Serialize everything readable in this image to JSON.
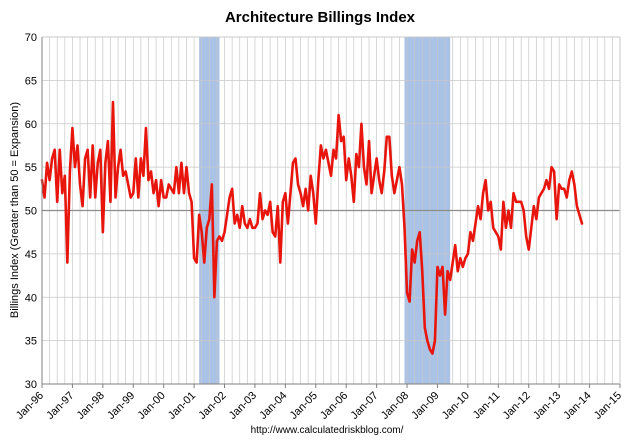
{
  "chart_data": {
    "type": "line",
    "title": "Architecture Billings Index",
    "xlabel": "",
    "ylabel": "Billings Index (Greater than 50 = Expansion)",
    "source": "http://www.calculatedriskblog.com/",
    "ylim": [
      30,
      70
    ],
    "yticks": [
      30,
      35,
      40,
      45,
      50,
      55,
      60,
      65,
      70
    ],
    "xlim": [
      "1996-01",
      "2015-01"
    ],
    "xtick_labels": [
      "Jan-96",
      "Jan-97",
      "Jan-98",
      "Jan-99",
      "Jan-00",
      "Jan-01",
      "Jan-02",
      "Jan-03",
      "Jan-04",
      "Jan-05",
      "Jan-06",
      "Jan-07",
      "Jan-08",
      "Jan-09",
      "Jan-10",
      "Jan-11",
      "Jan-12",
      "Jan-13",
      "Jan-14",
      "Jan-15"
    ],
    "reference_line": 50,
    "grid": true,
    "recessions": [
      {
        "start": "2001-03",
        "end": "2001-11"
      },
      {
        "start": "2007-12",
        "end": "2009-06"
      }
    ],
    "colors": {
      "line": "#e8150d",
      "recession": "#a9c2e6",
      "grid": "#c8c8c8",
      "refline": "#8c8c8c"
    },
    "series": [
      {
        "values": [
          [
            "1996-01",
            53.5
          ],
          [
            "1996-02",
            51.5
          ],
          [
            "1996-03",
            55.5
          ],
          [
            "1996-04",
            53.5
          ],
          [
            "1996-05",
            56.0
          ],
          [
            "1996-06",
            57.0
          ],
          [
            "1996-07",
            51.0
          ],
          [
            "1996-08",
            57.0
          ],
          [
            "1996-09",
            52.0
          ],
          [
            "1996-10",
            54.0
          ],
          [
            "1996-11",
            44.0
          ],
          [
            "1996-12",
            54.5
          ],
          [
            "1997-01",
            59.5
          ],
          [
            "1997-02",
            55.0
          ],
          [
            "1997-03",
            57.5
          ],
          [
            "1997-04",
            53.0
          ],
          [
            "1997-05",
            50.5
          ],
          [
            "1997-06",
            56.0
          ],
          [
            "1997-07",
            57.0
          ],
          [
            "1997-08",
            51.5
          ],
          [
            "1997-09",
            57.5
          ],
          [
            "1997-10",
            51.5
          ],
          [
            "1997-11",
            55.5
          ],
          [
            "1997-12",
            57.0
          ],
          [
            "1998-01",
            47.5
          ],
          [
            "1998-02",
            55.5
          ],
          [
            "1998-03",
            58.0
          ],
          [
            "1998-04",
            51.0
          ],
          [
            "1998-05",
            62.5
          ],
          [
            "1998-06",
            51.5
          ],
          [
            "1998-07",
            55.0
          ],
          [
            "1998-08",
            57.0
          ],
          [
            "1998-09",
            54.0
          ],
          [
            "1998-10",
            54.5
          ],
          [
            "1998-11",
            53.0
          ],
          [
            "1998-12",
            51.5
          ],
          [
            "1999-01",
            52.0
          ],
          [
            "1999-02",
            56.0
          ],
          [
            "1999-03",
            51.5
          ],
          [
            "1999-04",
            56.0
          ],
          [
            "1999-05",
            54.0
          ],
          [
            "1999-06",
            59.5
          ],
          [
            "1999-07",
            53.5
          ],
          [
            "1999-08",
            54.5
          ],
          [
            "1999-09",
            52.0
          ],
          [
            "1999-10",
            53.5
          ],
          [
            "1999-11",
            50.5
          ],
          [
            "1999-12",
            53.5
          ],
          [
            "2000-01",
            51.5
          ],
          [
            "2000-02",
            51.5
          ],
          [
            "2000-03",
            53.0
          ],
          [
            "2000-04",
            52.5
          ],
          [
            "2000-05",
            52.0
          ],
          [
            "2000-06",
            55.0
          ],
          [
            "2000-07",
            52.0
          ],
          [
            "2000-08",
            55.5
          ],
          [
            "2000-09",
            52.0
          ],
          [
            "2000-10",
            55.0
          ],
          [
            "2000-11",
            52.0
          ],
          [
            "2000-12",
            51.0
          ],
          [
            "2001-01",
            44.5
          ],
          [
            "2001-02",
            44.0
          ],
          [
            "2001-03",
            49.5
          ],
          [
            "2001-04",
            47.5
          ],
          [
            "2001-05",
            44.0
          ],
          [
            "2001-06",
            48.0
          ],
          [
            "2001-07",
            49.0
          ],
          [
            "2001-08",
            53.0
          ],
          [
            "2001-09",
            40.0
          ],
          [
            "2001-10",
            46.5
          ],
          [
            "2001-11",
            47.0
          ],
          [
            "2001-12",
            46.5
          ],
          [
            "2002-01",
            47.5
          ],
          [
            "2002-02",
            49.5
          ],
          [
            "2002-03",
            51.5
          ],
          [
            "2002-04",
            52.5
          ],
          [
            "2002-05",
            48.5
          ],
          [
            "2002-06",
            49.5
          ],
          [
            "2002-07",
            48.0
          ],
          [
            "2002-08",
            50.5
          ],
          [
            "2002-09",
            48.5
          ],
          [
            "2002-10",
            48.0
          ],
          [
            "2002-11",
            49.0
          ],
          [
            "2002-12",
            48.0
          ],
          [
            "2003-01",
            48.0
          ],
          [
            "2003-02",
            48.5
          ],
          [
            "2003-03",
            52.0
          ],
          [
            "2003-04",
            49.0
          ],
          [
            "2003-05",
            50.0
          ],
          [
            "2003-06",
            49.5
          ],
          [
            "2003-07",
            51.0
          ],
          [
            "2003-08",
            47.5
          ],
          [
            "2003-09",
            47.0
          ],
          [
            "2003-10",
            50.5
          ],
          [
            "2003-11",
            44.0
          ],
          [
            "2003-12",
            51.0
          ],
          [
            "2004-01",
            52.0
          ],
          [
            "2004-02",
            48.5
          ],
          [
            "2004-03",
            52.0
          ],
          [
            "2004-04",
            55.5
          ],
          [
            "2004-05",
            56.0
          ],
          [
            "2004-06",
            53.0
          ],
          [
            "2004-07",
            52.0
          ],
          [
            "2004-08",
            50.5
          ],
          [
            "2004-09",
            52.5
          ],
          [
            "2004-10",
            50.0
          ],
          [
            "2004-11",
            54.0
          ],
          [
            "2004-12",
            52.0
          ],
          [
            "2005-01",
            48.5
          ],
          [
            "2005-02",
            53.5
          ],
          [
            "2005-03",
            57.5
          ],
          [
            "2005-04",
            56.0
          ],
          [
            "2005-05",
            57.0
          ],
          [
            "2005-06",
            55.5
          ],
          [
            "2005-07",
            54.0
          ],
          [
            "2005-08",
            57.0
          ],
          [
            "2005-09",
            56.0
          ],
          [
            "2005-10",
            61.0
          ],
          [
            "2005-11",
            58.0
          ],
          [
            "2005-12",
            58.5
          ],
          [
            "2006-01",
            53.5
          ],
          [
            "2006-02",
            56.0
          ],
          [
            "2006-03",
            54.0
          ],
          [
            "2006-04",
            51.0
          ],
          [
            "2006-05",
            56.5
          ],
          [
            "2006-06",
            55.0
          ],
          [
            "2006-07",
            60.0
          ],
          [
            "2006-08",
            55.0
          ],
          [
            "2006-09",
            53.0
          ],
          [
            "2006-10",
            58.0
          ],
          [
            "2006-11",
            52.0
          ],
          [
            "2006-12",
            54.0
          ],
          [
            "2007-01",
            56.0
          ],
          [
            "2007-02",
            53.5
          ],
          [
            "2007-03",
            52.0
          ],
          [
            "2007-04",
            54.5
          ],
          [
            "2007-05",
            58.5
          ],
          [
            "2007-06",
            58.5
          ],
          [
            "2007-07",
            54.0
          ],
          [
            "2007-08",
            52.0
          ],
          [
            "2007-09",
            53.5
          ],
          [
            "2007-10",
            55.0
          ],
          [
            "2007-11",
            53.0
          ],
          [
            "2007-12",
            48.0
          ],
          [
            "2008-01",
            40.5
          ],
          [
            "2008-02",
            39.5
          ],
          [
            "2008-03",
            45.5
          ],
          [
            "2008-04",
            44.0
          ],
          [
            "2008-05",
            46.5
          ],
          [
            "2008-06",
            47.5
          ],
          [
            "2008-07",
            43.0
          ],
          [
            "2008-08",
            36.5
          ],
          [
            "2008-09",
            35.0
          ],
          [
            "2008-10",
            34.0
          ],
          [
            "2008-11",
            33.5
          ],
          [
            "2008-12",
            35.0
          ],
          [
            "2009-01",
            43.5
          ],
          [
            "2009-02",
            42.5
          ],
          [
            "2009-03",
            43.5
          ],
          [
            "2009-04",
            38.0
          ],
          [
            "2009-05",
            43.0
          ],
          [
            "2009-06",
            42.0
          ],
          [
            "2009-07",
            44.0
          ],
          [
            "2009-08",
            46.0
          ],
          [
            "2009-09",
            43.0
          ],
          [
            "2009-10",
            44.5
          ],
          [
            "2009-11",
            43.5
          ],
          [
            "2009-12",
            44.5
          ],
          [
            "2010-01",
            45.0
          ],
          [
            "2010-02",
            47.5
          ],
          [
            "2010-03",
            46.5
          ],
          [
            "2010-04",
            48.5
          ],
          [
            "2010-05",
            50.5
          ],
          [
            "2010-06",
            49.0
          ],
          [
            "2010-07",
            52.0
          ],
          [
            "2010-08",
            53.5
          ],
          [
            "2010-09",
            50.0
          ],
          [
            "2010-10",
            51.0
          ],
          [
            "2010-11",
            48.0
          ],
          [
            "2010-12",
            47.5
          ],
          [
            "2011-01",
            47.0
          ],
          [
            "2011-02",
            45.5
          ],
          [
            "2011-03",
            51.0
          ],
          [
            "2011-04",
            48.0
          ],
          [
            "2011-05",
            50.0
          ],
          [
            "2011-06",
            48.0
          ],
          [
            "2011-07",
            52.0
          ],
          [
            "2011-08",
            51.0
          ],
          [
            "2011-09",
            51.0
          ],
          [
            "2011-10",
            51.0
          ],
          [
            "2011-11",
            50.0
          ],
          [
            "2011-12",
            47.0
          ],
          [
            "2012-01",
            45.5
          ],
          [
            "2012-02",
            48.0
          ],
          [
            "2012-03",
            50.5
          ],
          [
            "2012-04",
            49.0
          ],
          [
            "2012-05",
            51.5
          ],
          [
            "2012-06",
            52.0
          ],
          [
            "2012-07",
            52.5
          ],
          [
            "2012-08",
            53.5
          ],
          [
            "2012-09",
            52.5
          ],
          [
            "2012-10",
            55.0
          ],
          [
            "2012-11",
            54.5
          ],
          [
            "2012-12",
            49.0
          ],
          [
            "2013-01",
            53.0
          ],
          [
            "2013-02",
            52.5
          ],
          [
            "2013-03",
            52.5
          ],
          [
            "2013-04",
            51.5
          ],
          [
            "2013-05",
            53.5
          ],
          [
            "2013-06",
            54.5
          ],
          [
            "2013-07",
            53.0
          ],
          [
            "2013-08",
            50.5
          ],
          [
            "2013-09",
            49.5
          ],
          [
            "2013-10",
            48.5
          ]
        ]
      }
    ]
  }
}
